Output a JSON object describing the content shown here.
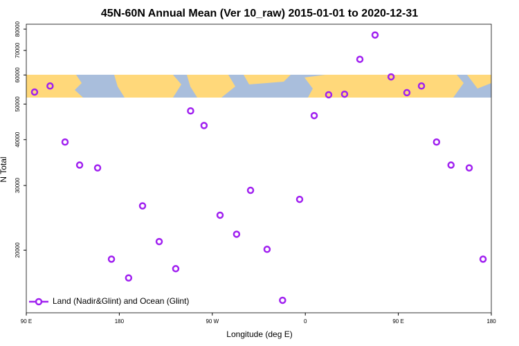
{
  "chart_data": {
    "type": "scatter",
    "title": "45N-60N Annual Mean (Ver 10_raw)   2015-01-01 to 2020-12-31",
    "x_label": "Longitude (deg E)",
    "y_label": "N Total",
    "log_y": true,
    "legend": "bottom-left",
    "xlim": [
      -270,
      180
    ],
    "ylim": [
      13500,
      82500
    ],
    "xticks": [
      {
        "value": -270,
        "label": "90 E"
      },
      {
        "value": -180,
        "label": "180"
      },
      {
        "value": -90,
        "label": "90 W"
      },
      0,
      {
        "value": 90,
        "label": "90 E"
      },
      180
    ],
    "yticks": [
      20000,
      30000,
      40000,
      50000,
      60000,
      70000,
      80000
    ],
    "series": [
      {
        "name": "Land (Nadir&Glint) and Ocean (Glint)",
        "color": "#a020f0",
        "x": [
          -262,
          -247,
          -232.5,
          -218.4,
          -201,
          -187.6,
          -171,
          -157.5,
          -141.4,
          -125.4,
          -111,
          -98,
          -82.5,
          -66.5,
          -53,
          -37,
          -22,
          -5.5,
          8.6,
          22.6,
          38,
          52.8,
          67.5,
          83,
          98.3,
          112.4,
          127,
          141,
          158.6,
          172
        ],
        "values": [
          53900,
          56000,
          39400,
          34100,
          33500,
          18900,
          16800,
          26400,
          21100,
          17800,
          47900,
          43700,
          24900,
          22100,
          29100,
          20100,
          14600,
          27500,
          46500,
          53000,
          53200,
          66200,
          77100,
          59300,
          53700,
          56000,
          39400,
          34100,
          33500,
          18900
        ]
      }
    ]
  }
}
